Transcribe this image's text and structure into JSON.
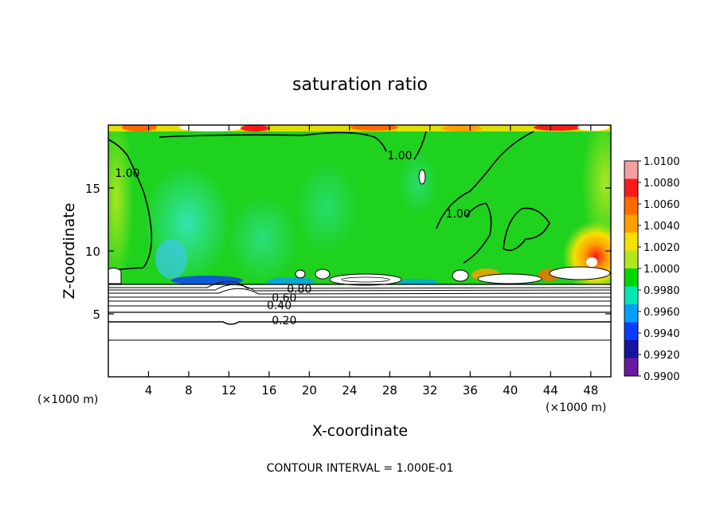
{
  "chart_data": {
    "type": "contour",
    "title": "saturation ratio",
    "xlabel": "X-coordinate",
    "ylabel": "Z-coordinate",
    "x_unit_note_left": "(×1000 m)",
    "x_unit_note_right": "(×1000 m)",
    "xlim": [
      0,
      50
    ],
    "ylim": [
      0,
      20
    ],
    "x_ticks": [
      4,
      8,
      12,
      16,
      20,
      24,
      28,
      32,
      36,
      40,
      44,
      48
    ],
    "y_ticks": [
      5,
      10,
      15
    ],
    "footer": "CONTOUR INTERVAL = 1.000E-01",
    "colorbar": {
      "levels": [
        "1.0100",
        "1.0080",
        "1.0060",
        "1.0040",
        "1.0020",
        "1.0000",
        "0.9980",
        "0.9960",
        "0.9940",
        "0.9920",
        "0.9900"
      ],
      "colors": [
        "#f4a0a0",
        "#ff1a1a",
        "#ff6a00",
        "#ffa000",
        "#f5e000",
        "#b4e61e",
        "#00d600",
        "#00e6b4",
        "#00a0ff",
        "#0a3cff",
        "#1414a0",
        "#6a1aa0"
      ]
    },
    "contour_labels": [
      {
        "text": "1.00",
        "x": 1.9,
        "z": 16.0
      },
      {
        "text": "1.00",
        "x": 29.0,
        "z": 17.4
      },
      {
        "text": "1.00",
        "x": 34.8,
        "z": 12.8
      },
      {
        "text": "0.80",
        "x": 19.0,
        "z": 6.8
      },
      {
        "text": "0.60",
        "x": 17.5,
        "z": 6.1
      },
      {
        "text": "0.40",
        "x": 17.0,
        "z": 5.5
      },
      {
        "text": "0.20",
        "x": 17.5,
        "z": 4.3
      }
    ]
  }
}
